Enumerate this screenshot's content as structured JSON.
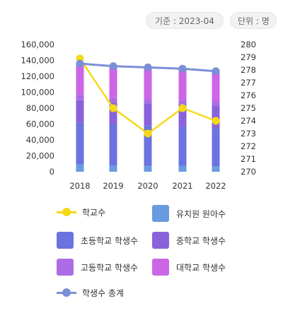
{
  "badges": {
    "date": "기준 : 2023-04",
    "unit": "단위 : 명"
  },
  "colors": {
    "school": "#f5d916",
    "kindergarten": "#6a9ae0",
    "elementary": "#6b73e0",
    "middle": "#8a62dc",
    "high": "#ad6ce6",
    "university": "#cc66e6",
    "total": "#7a8fd6"
  },
  "legend": [
    {
      "key": "school",
      "label": "학교수",
      "kind": "line"
    },
    {
      "key": "kindergarten",
      "label": "유치원 원아수",
      "kind": "box"
    },
    {
      "key": "elementary",
      "label": "초등학교 학생수",
      "kind": "box"
    },
    {
      "key": "middle",
      "label": "중학교 학생수",
      "kind": "box"
    },
    {
      "key": "high",
      "label": "고등학교 학생수",
      "kind": "box"
    },
    {
      "key": "university",
      "label": "대학교 학생수",
      "kind": "box"
    },
    {
      "key": "total",
      "label": "학생수 총계",
      "kind": "line"
    }
  ],
  "chart_data": {
    "type": "bar",
    "stacked": true,
    "categories": [
      "2018",
      "2019",
      "2020",
      "2021",
      "2022"
    ],
    "y_left": {
      "ticks": [
        "0",
        "20,000",
        "40,000",
        "60,000",
        "80,000",
        "100,000",
        "120,000",
        "140,000",
        "160,000"
      ],
      "ylim": [
        0,
        160000
      ]
    },
    "y_right": {
      "ticks": [
        "270",
        "271",
        "272",
        "273",
        "274",
        "275",
        "276",
        "277",
        "278",
        "279",
        "280"
      ],
      "ylim": [
        270,
        280
      ]
    },
    "series": [
      {
        "name": "유치원 원아수",
        "key": "kindergarten",
        "axis": "left",
        "type": "bar",
        "values": [
          9000,
          8000,
          7500,
          7500,
          7000
        ]
      },
      {
        "name": "초등학교 학생수",
        "key": "elementary",
        "axis": "left",
        "type": "bar",
        "values": [
          53000,
          52000,
          50500,
          49000,
          48000
        ]
      },
      {
        "name": "중학교 학생수",
        "key": "middle",
        "axis": "left",
        "type": "bar",
        "values": [
          28000,
          27000,
          28000,
          28500,
          28000
        ]
      },
      {
        "name": "고등학교 학생수",
        "key": "high",
        "axis": "left",
        "type": "bar",
        "values": [
          7000,
          6000,
          5500,
          5500,
          5000
        ]
      },
      {
        "name": "대학교 학생수",
        "key": "university",
        "axis": "left",
        "type": "bar",
        "values": [
          40000,
          40500,
          40000,
          39000,
          40000
        ]
      },
      {
        "name": "학교수",
        "key": "school",
        "axis": "right",
        "type": "line",
        "values": [
          278.9,
          275,
          273,
          275,
          274
        ]
      },
      {
        "name": "학생수 총계",
        "key": "total",
        "axis": "right",
        "type": "line",
        "values": [
          278.5,
          278.3,
          278.2,
          278.1,
          277.9
        ]
      }
    ]
  }
}
